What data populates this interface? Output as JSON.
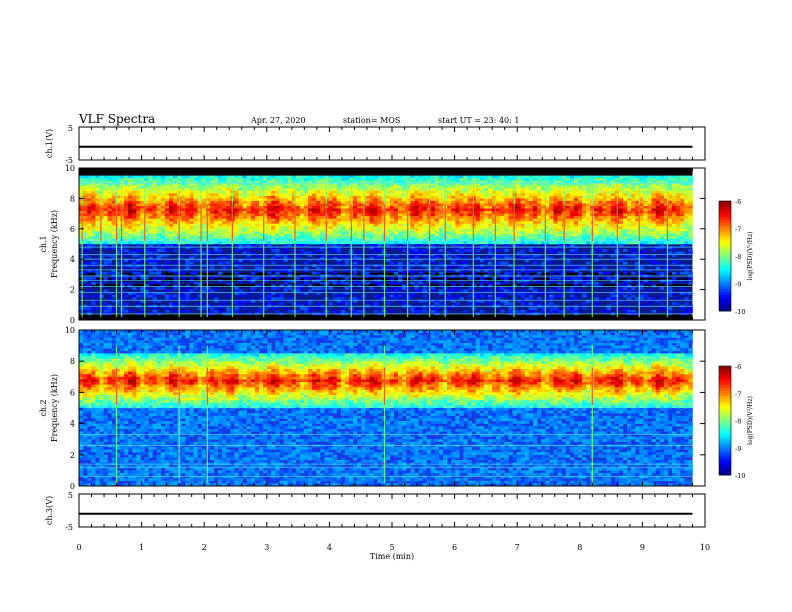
{
  "header": {
    "title": "VLF Spectra",
    "date": "Apr. 27, 2020",
    "station": "station= MOS",
    "start": "start  UT  =   23: 40: 1"
  },
  "chart_data": [
    {
      "type": "line",
      "panel": "ch1-voltage",
      "ylabel": "ch.1(V)",
      "ylim": [
        -5,
        5
      ],
      "yticks": [
        "5",
        "-5"
      ],
      "xlim": [
        0,
        10
      ],
      "series": [
        {
          "x": [
            0,
            9.8
          ],
          "y": [
            -1,
            -1
          ]
        }
      ]
    },
    {
      "type": "heatmap",
      "panel": "ch1-spectrogram",
      "ylabel": "ch.1\nFrequency  (kHz)",
      "xlim": [
        0,
        9.8
      ],
      "ylim": [
        0,
        10
      ],
      "yticks": [
        "0",
        "2",
        "4",
        "6",
        "8",
        "10"
      ],
      "colorbar": {
        "label": "log(PSD)(V²/Hz)",
        "range": [
          -10,
          -6
        ],
        "ticks": [
          "-6",
          "-7",
          "-8",
          "-9",
          "-10"
        ]
      },
      "emission_band_khz": [
        5,
        9.5
      ],
      "spike_times_min": [
        0.05,
        0.35,
        0.6,
        0.68,
        1.05,
        1.6,
        1.95,
        2.05,
        2.45,
        2.95,
        3.45,
        3.95,
        4.35,
        4.55,
        4.88,
        5.25,
        5.6,
        5.85,
        6.3,
        6.65,
        6.95,
        7.45,
        7.75,
        8.2,
        8.6,
        8.95,
        9.4
      ],
      "carrier_lines_khz": [
        0.4,
        0.9,
        1.3,
        1.8,
        2.2,
        2.6,
        2.9,
        3.3,
        3.6,
        4.0,
        4.3,
        4.8,
        5.2,
        9.0
      ]
    },
    {
      "type": "heatmap",
      "panel": "ch2-spectrogram",
      "ylabel": "ch.2\nFrequency  (kHz)",
      "xlim": [
        0,
        9.8
      ],
      "ylim": [
        0,
        10
      ],
      "yticks": [
        "0",
        "2",
        "4",
        "6",
        "8",
        "10"
      ],
      "colorbar": {
        "label": "log(PSD)(V²/Hz)",
        "range": [
          -10,
          -6
        ],
        "ticks": [
          "-6",
          "-7",
          "-8",
          "-9",
          "-10"
        ]
      },
      "emission_band_khz": [
        5,
        8.5
      ],
      "spike_times_min": [
        0.6,
        1.6,
        2.05,
        4.88,
        8.2
      ],
      "carrier_lines_khz": [
        0.6,
        1.2,
        1.4,
        2.6,
        3.3,
        5.1
      ]
    },
    {
      "type": "line",
      "panel": "ch3-voltage",
      "ylabel": "ch.3(V)",
      "ylim": [
        -5,
        5
      ],
      "yticks": [
        "5",
        "-5"
      ],
      "xlim": [
        0,
        10
      ],
      "xlabel": "Time  (min)",
      "xticks": [
        "0",
        "1",
        "2",
        "3",
        "4",
        "5",
        "6",
        "7",
        "8",
        "9",
        "10"
      ],
      "series": [
        {
          "x": [
            0,
            9.8
          ],
          "y": [
            -1,
            -1
          ]
        }
      ]
    }
  ]
}
